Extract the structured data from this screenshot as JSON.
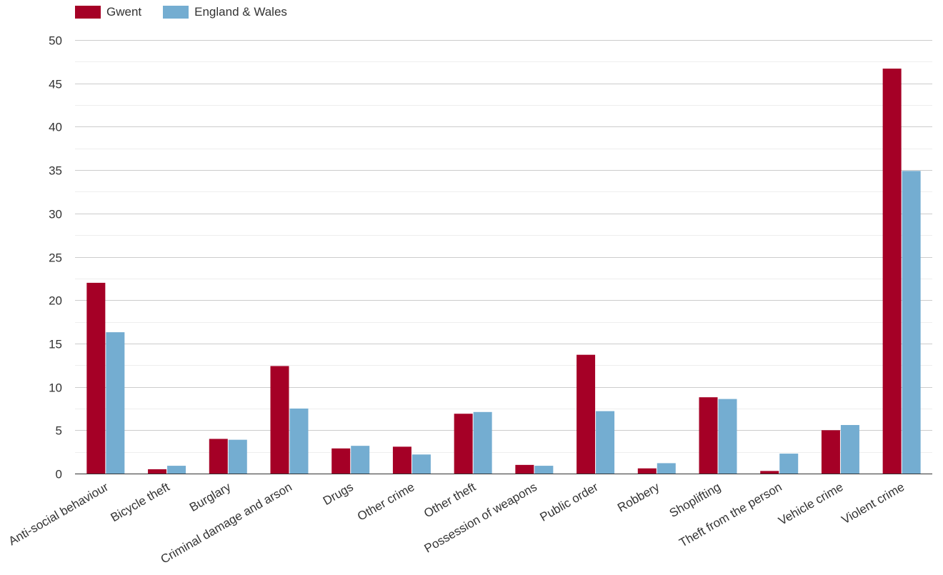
{
  "colors": {
    "gwent": "#a50026",
    "england_wales": "#74add1",
    "grid": "#cccccc",
    "minor_grid": "#eeeeee",
    "axis": "#333333",
    "text": "#333333"
  },
  "legend": [
    {
      "label": "Gwent",
      "color": "#a50026"
    },
    {
      "label": "England & Wales",
      "color": "#74add1"
    }
  ],
  "chart_data": {
    "type": "bar",
    "categories": [
      "Anti-social behaviour",
      "Bicycle theft",
      "Burglary",
      "Criminal damage and arson",
      "Drugs",
      "Other crime",
      "Other theft",
      "Possession of weapons",
      "Public order",
      "Robbery",
      "Shoplifting",
      "Theft from the person",
      "Vehicle crime",
      "Violent crime"
    ],
    "series": [
      {
        "name": "Gwent",
        "values": [
          22.0,
          0.5,
          4.0,
          12.4,
          2.9,
          3.1,
          6.9,
          1.0,
          13.7,
          0.6,
          8.8,
          0.3,
          5.0,
          46.7
        ]
      },
      {
        "name": "England & Wales",
        "values": [
          16.3,
          0.9,
          3.9,
          7.5,
          3.2,
          2.2,
          7.1,
          0.9,
          7.2,
          1.2,
          8.6,
          2.3,
          5.6,
          34.9
        ]
      }
    ],
    "yticks": [
      "0",
      "5",
      "10",
      "15",
      "20",
      "25",
      "30",
      "35",
      "40",
      "45",
      "50"
    ],
    "ylim": [
      0,
      50
    ],
    "grid": true,
    "legend_position": "top-left"
  }
}
